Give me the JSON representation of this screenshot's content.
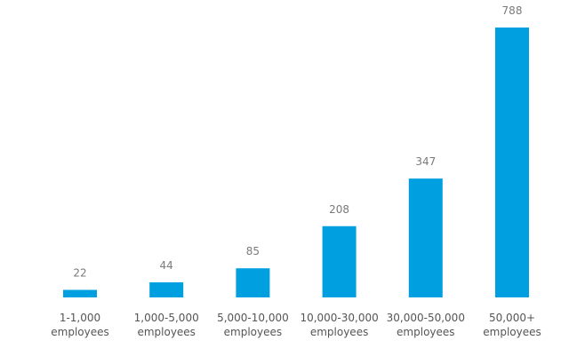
{
  "chart_data": {
    "type": "bar",
    "title": "",
    "xlabel": "",
    "ylabel": "",
    "categories": [
      [
        "1-1,000",
        "employees"
      ],
      [
        "1,000-5,000",
        "employees"
      ],
      [
        "5,000-10,000",
        "employees"
      ],
      [
        "10,000-30,000",
        "employees"
      ],
      [
        "30,000-50,000",
        "employees"
      ],
      [
        "50,000+",
        "employees"
      ]
    ],
    "values": [
      22,
      44,
      85,
      208,
      347,
      788
    ],
    "value_labels": [
      "22",
      "44",
      "85",
      "208",
      "347",
      "788"
    ],
    "ylim": [
      0,
      788
    ],
    "grid": false,
    "legend": "none",
    "bar_color": "#009fdf"
  }
}
